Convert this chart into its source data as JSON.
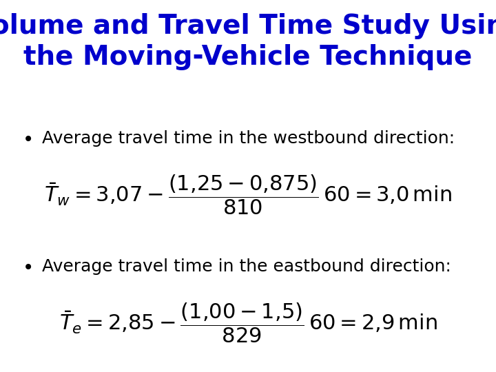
{
  "title_line1": "Volume and Travel Time Study Using",
  "title_line2": "the Moving-Vehicle Technique",
  "title_color": "#0000CC",
  "title_fontsize": 28,
  "bg_color": "#FFFFFF",
  "bullet1_text": "Average travel time in the westbound direction:",
  "bullet2_text": "Average travel time in the eastbound direction:",
  "bullet_fontsize": 18,
  "bullet_color": "#000000",
  "formula1": "$\\bar{T}_{w} = 3{,}07 - \\dfrac{(1{,}25-0{,}875)}{810}\\,60 = 3{,}0\\,\\mathrm{min}$",
  "formula2": "$\\bar{T}_{e} = 2{,}85 - \\dfrac{(1{,}00-1{,}5)}{829}\\,60 = 2{,}9\\,\\mathrm{min}$",
  "formula_fontsize": 22,
  "formula_color": "#000000"
}
